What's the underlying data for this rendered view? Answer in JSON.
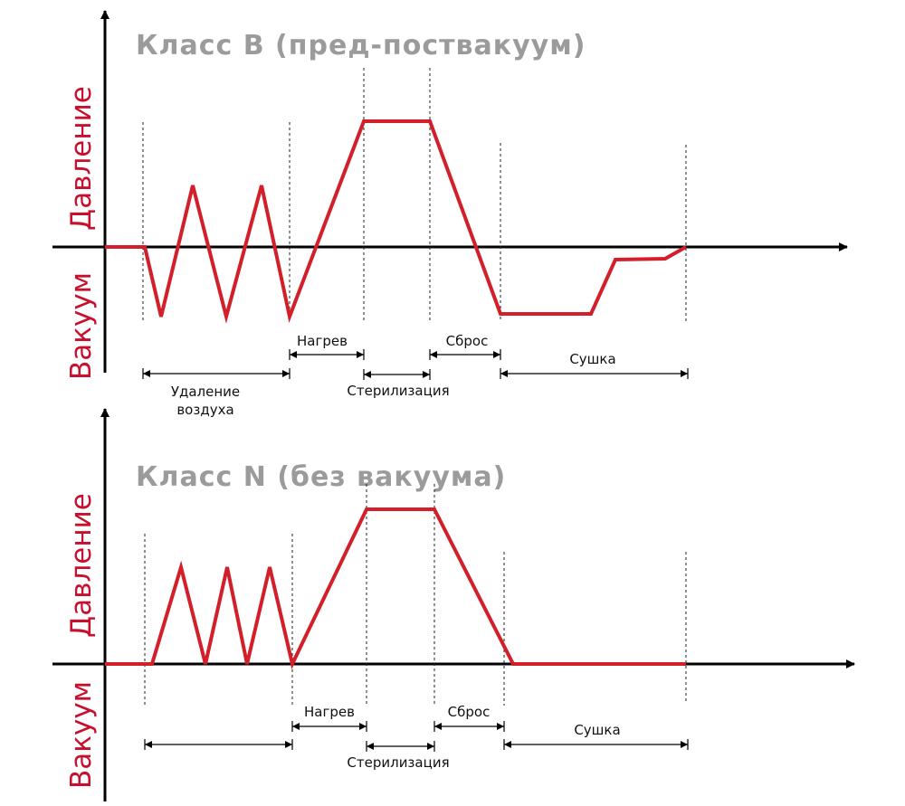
{
  "panels": [
    {
      "title": "Класс  B (пред-поствакуум)",
      "y_label_pressure": "Давление",
      "y_label_vacuum": "Вакуум",
      "phases": {
        "air_removal_line1": "Удаление",
        "air_removal_line2": "воздуха",
        "heating": "Нагрев",
        "sterilization": "Стерилизация",
        "release": "Сброс",
        "drying": "Сушка"
      },
      "curve_color": "#d31f2a"
    },
    {
      "title": "Класс  N (без вакуума)",
      "y_label_pressure": "Давление",
      "y_label_vacuum": "Вакуум",
      "phases": {
        "heating": "Нагрев",
        "sterilization": "Стерилизация",
        "release": "Сброс",
        "drying": "Сушка"
      },
      "curve_color": "#d31f2a"
    }
  ]
}
